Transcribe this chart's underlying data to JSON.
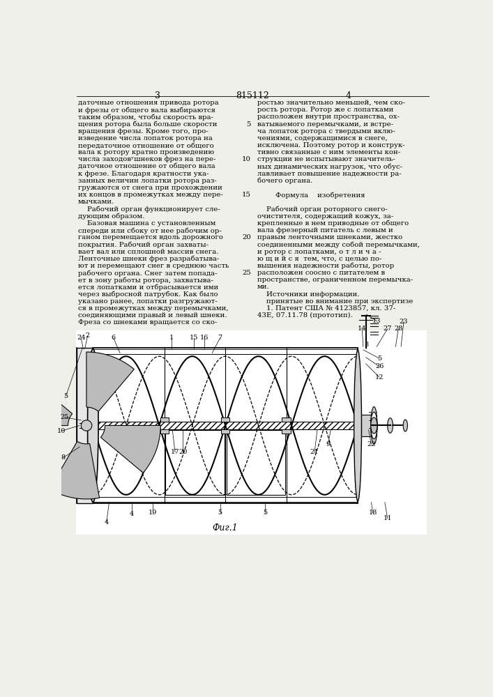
{
  "page_number_left": "3",
  "patent_number": "815112",
  "page_number_right": "4",
  "col1_lines": [
    "даточные отношения привода ротора",
    "и фрезы от общего вала выбираются",
    "таким образом, чтобы скорость вра-",
    "щения ротора была больше скорости",
    "вращения фрезы. Кроме того, про-",
    "изведение числа лопаток ротора на",
    "передаточное отношение от общего",
    "вала к ротору кратно произведению",
    "числа заходовʸшнеков фрез на пере-",
    "даточное отношение от общего вала",
    "к фрезе. Благодаря кратности ука-",
    "занных величин лопатки ротора раз-",
    "гружаются от снега при прохождении",
    "их концов в промежутках между пере-",
    "мычками.",
    "    Рабочий орган функционирует сле-",
    "дующим образом.",
    "    Базовая машина с установленным",
    "спереди или сбоку от нее рабочим ор-",
    "ганом перемещается вдоль дорожного",
    "покрытия. Рабочий орган захваты-",
    "вает вал или сплошной массив снега.",
    "Ленточные шнеки фрез разрабатыва-",
    "ют и перемещают снег в среднюю часть",
    "рабочего органа. Снег затем попада-",
    "ет в зону работы ротора, захватыва-",
    "ется лопатками и отбрасывается ими",
    "через выбросной патрубок. Как было",
    "указано ранее, лопатки разгружают-",
    "ся в промежутках между перемычками,",
    "соединяющими правый и левый шнеки.",
    "Фреза со шнеками вращается со ско-"
  ],
  "col2_lines": [
    "ростью значительно меньшей, чем ско-",
    "рость ротора. Ротор же с лопатками",
    "расположен внутри пространства, ох-",
    "ватываемого перемычками, и встре-",
    "ча лопаток ротора с твердыми вклю-",
    "чениями, содержащимися в снеге,",
    "исключена. Поэтому ротор и конструк-",
    "тивно связанные с ним элементы кон-",
    "струкции не испытывают значитель-",
    "ных динамических нагрузок, что обус-",
    "лавливает повышение надежности ра-",
    "бочего органа.",
    "",
    "        Формула    изобретения",
    "",
    "    Рабочий орган роторного снего-",
    "очистителя, содержащий кожух, за-",
    "крепленные в нем приводные от общего",
    "вала фрезерный питатель с левым и",
    "правым ленточными шнеками, жестко",
    "соединенными между собой перемычками,",
    "и ротор с лопатками, о т л и ч а -",
    "ю щ и й с я  тем, что, с целью по-",
    "вышения надежности работы, ротор",
    "расположен соосно с питателем в",
    "пространстве, ограниченном перемычка-",
    "ми.",
    "    Источники информации.",
    "    принятые во внимание при экспертизе",
    "    1. Патент США № 4123857, кл. 37-",
    "43Е, 07.11.78 (прототип)."
  ],
  "fig_label": "Фиг.1",
  "bg_color": "#f0f0eb"
}
